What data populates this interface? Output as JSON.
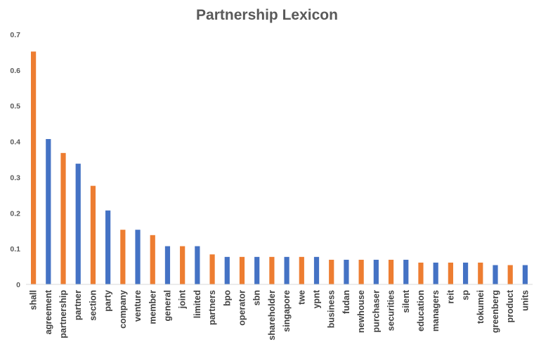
{
  "chart_data": {
    "type": "bar",
    "title": "Partnership Lexicon",
    "xlabel": "",
    "ylabel": "",
    "ylim": [
      0,
      0.7
    ],
    "yticks": [
      "0",
      "0.1",
      "0.2",
      "0.3",
      "0.4",
      "0.5",
      "0.6",
      "0.7"
    ],
    "ytick_values": [
      0,
      0.1,
      0.2,
      0.3,
      0.4,
      0.5,
      0.6,
      0.7
    ],
    "grid": false,
    "colors": {
      "orange": "#ED7D31",
      "blue": "#4472C4"
    },
    "categories": [
      "shall",
      "agreement",
      "partnership",
      "partner",
      "section",
      "party",
      "company",
      "venture",
      "member",
      "general",
      "joint",
      "limited",
      "partners",
      "bpo",
      "operator",
      "sbn",
      "shareholder",
      "singapore",
      "twe",
      "ypnt",
      "business",
      "fudan",
      "newhouse",
      "purchaser",
      "securities",
      "silent",
      "education",
      "managers",
      "reit",
      "sp",
      "tokumei",
      "greenberg",
      "product",
      "units"
    ],
    "values": [
      0.652,
      0.407,
      0.368,
      0.338,
      0.276,
      0.207,
      0.153,
      0.153,
      0.138,
      0.107,
      0.107,
      0.107,
      0.084,
      0.077,
      0.077,
      0.077,
      0.077,
      0.077,
      0.077,
      0.077,
      0.069,
      0.069,
      0.069,
      0.069,
      0.069,
      0.069,
      0.061,
      0.061,
      0.061,
      0.061,
      0.061,
      0.054,
      0.054,
      0.054
    ],
    "bar_colors": [
      "orange",
      "blue",
      "orange",
      "blue",
      "orange",
      "blue",
      "orange",
      "blue",
      "orange",
      "blue",
      "orange",
      "blue",
      "orange",
      "blue",
      "orange",
      "blue",
      "orange",
      "blue",
      "orange",
      "blue",
      "orange",
      "blue",
      "orange",
      "blue",
      "orange",
      "blue",
      "orange",
      "blue",
      "orange",
      "blue",
      "orange",
      "blue",
      "orange",
      "blue"
    ]
  }
}
